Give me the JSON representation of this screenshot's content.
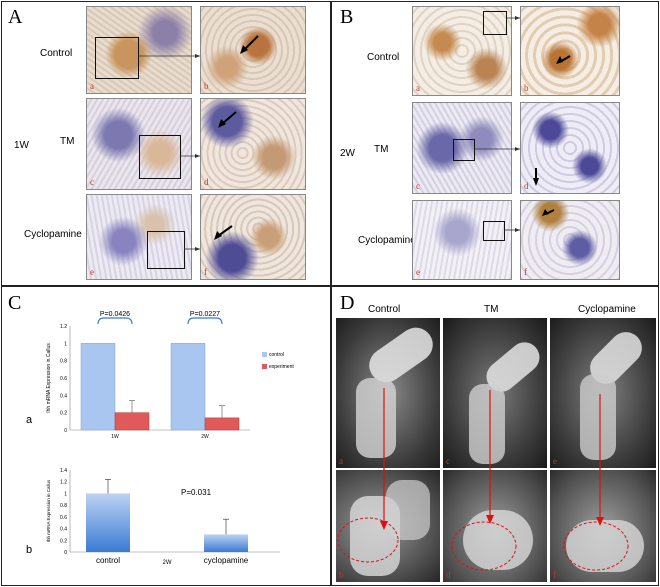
{
  "panels": {
    "A": {
      "letter": "A",
      "week_label": "1W",
      "rows": [
        "Control",
        "TM",
        "Cyclopamine"
      ],
      "sublabels": [
        "a",
        "b",
        "c",
        "d",
        "e",
        "f"
      ]
    },
    "B": {
      "letter": "B",
      "week_label": "2W",
      "rows": [
        "Control",
        "TM",
        "Cyclopamine"
      ],
      "sublabels": [
        "a",
        "b",
        "c",
        "d",
        "e",
        "f"
      ]
    },
    "C": {
      "letter": "C",
      "sub_a": "a",
      "sub_b": "b"
    },
    "D": {
      "letter": "D",
      "columns": [
        "Control",
        "TM",
        "Cyclopamine"
      ],
      "sublabels": [
        "a",
        "b",
        "c",
        "d",
        "e",
        "f"
      ]
    }
  },
  "chart_data": [
    {
      "type": "bar",
      "categories": [
        "1W",
        "2W"
      ],
      "series": [
        {
          "name": "control",
          "values": [
            1.0,
            1.0
          ],
          "errors": [
            0,
            0
          ]
        },
        {
          "name": "experiment",
          "values": [
            0.2,
            0.14
          ],
          "errors": [
            0.14,
            0.14
          ]
        }
      ],
      "ylabel": "Ihh mRNA Expression in Callus",
      "ylim": [
        0,
        1.2
      ],
      "yticks": [
        "0",
        "0.2",
        "0.4",
        "0.6",
        "0.8",
        "1",
        "1.2"
      ],
      "annotations": [
        "P=0.0426",
        "P=0.0227"
      ],
      "legend_position": "right",
      "colors": {
        "control": "#a9c6f0",
        "experiment": "#e05a5a"
      }
    },
    {
      "type": "bar",
      "categories": [
        "control",
        "cyclopamine"
      ],
      "values": [
        1.0,
        0.3
      ],
      "errors": [
        0.24,
        0.26
      ],
      "xlabel": "2W",
      "ylabel": "Ihh mRNA Expression in Callus",
      "ylim": [
        0,
        1.4
      ],
      "yticks": [
        "0",
        "0.2",
        "0.4",
        "0.6",
        "0.8",
        "1",
        "1.2",
        "1.4"
      ],
      "annotations": [
        "P=0.031"
      ],
      "colors": {
        "bar": "#3b7bd4"
      }
    }
  ]
}
